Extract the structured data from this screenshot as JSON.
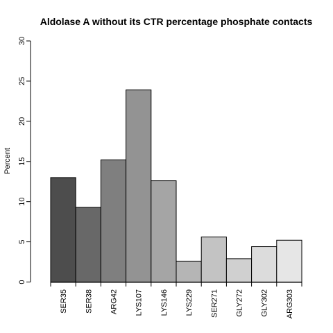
{
  "chart_data": {
    "type": "bar",
    "title": "Aldolase A without its CTR percentage phosphate contacts",
    "xlabel": "",
    "ylabel": "Percent",
    "ylim": [
      0,
      30
    ],
    "yticks": [
      0,
      5,
      10,
      15,
      20,
      25,
      30
    ],
    "categories": [
      "SER35",
      "SER38",
      "ARG42",
      "LYS107",
      "LYS146",
      "LYS229",
      "SER271",
      "GLY272",
      "GLY302",
      "ARG303"
    ],
    "values": [
      13.0,
      9.3,
      15.2,
      23.9,
      12.6,
      2.6,
      5.6,
      2.9,
      4.4,
      5.2
    ],
    "colors": [
      "#4d4d4d",
      "#686868",
      "#7f7f7f",
      "#939393",
      "#a5a5a5",
      "#b5b5b5",
      "#c3c3c3",
      "#d0d0d0",
      "#dcdcdc",
      "#e6e6e6"
    ],
    "grid": false,
    "legend": "none"
  }
}
